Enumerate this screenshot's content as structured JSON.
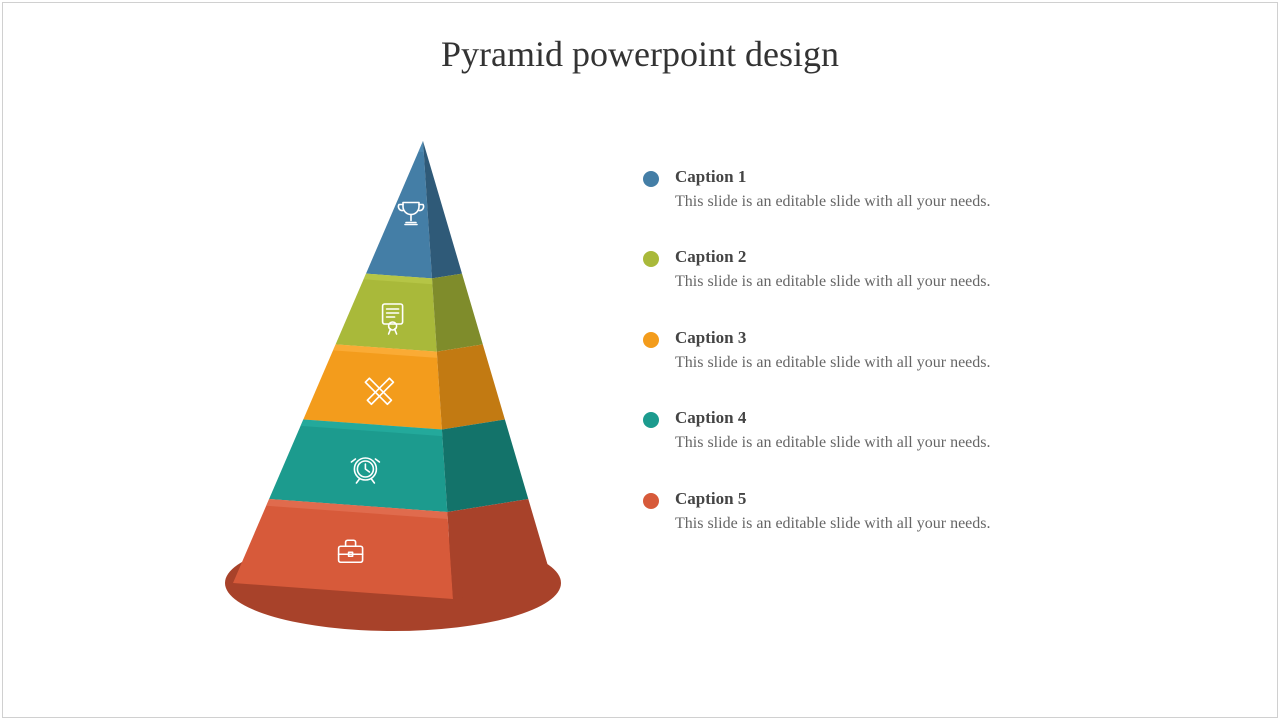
{
  "title": "Pyramid powerpoint design",
  "title_fontsize": 36,
  "title_color": "#333333",
  "background_color": "#ffffff",
  "border_color": "#d0d0d0",
  "pyramid": {
    "type": "pyramid",
    "layers": [
      {
        "color": "#447ea6",
        "shade": "#2f5a78",
        "highlight": "#5a94bc",
        "icon": "trophy"
      },
      {
        "color": "#a9b93a",
        "shade": "#7f8c2b",
        "highlight": "#bfcf50",
        "icon": "certificate"
      },
      {
        "color": "#f39c1c",
        "shade": "#c27a12",
        "highlight": "#ffb84a",
        "icon": "pencil-ruler"
      },
      {
        "color": "#1c9b8e",
        "shade": "#13736a",
        "highlight": "#2ab5a6",
        "icon": "alarm-clock"
      },
      {
        "color": "#d75a3a",
        "shade": "#a8422a",
        "highlight": "#e87a5c",
        "icon": "briefcase"
      }
    ],
    "icon_stroke": "#ffffff"
  },
  "legend": {
    "items": [
      {
        "bullet_color": "#447ea6",
        "title": "Caption 1",
        "desc": "This slide is an editable slide with all your needs."
      },
      {
        "bullet_color": "#a9b93a",
        "title": "Caption 2",
        "desc": "This slide is an editable slide with all your needs."
      },
      {
        "bullet_color": "#f39c1c",
        "title": "Caption 3",
        "desc": "This slide is an editable slide with all your needs."
      },
      {
        "bullet_color": "#1c9b8e",
        "title": "Caption 4",
        "desc": "This slide is an editable slide with all your needs."
      },
      {
        "bullet_color": "#d75a3a",
        "title": "Caption 5",
        "desc": "This slide is an editable slide with all your needs."
      }
    ],
    "title_fontsize": 17,
    "desc_fontsize": 16,
    "title_color": "#444444",
    "desc_color": "#666666",
    "bullet_size": 16,
    "item_spacing": 34
  }
}
